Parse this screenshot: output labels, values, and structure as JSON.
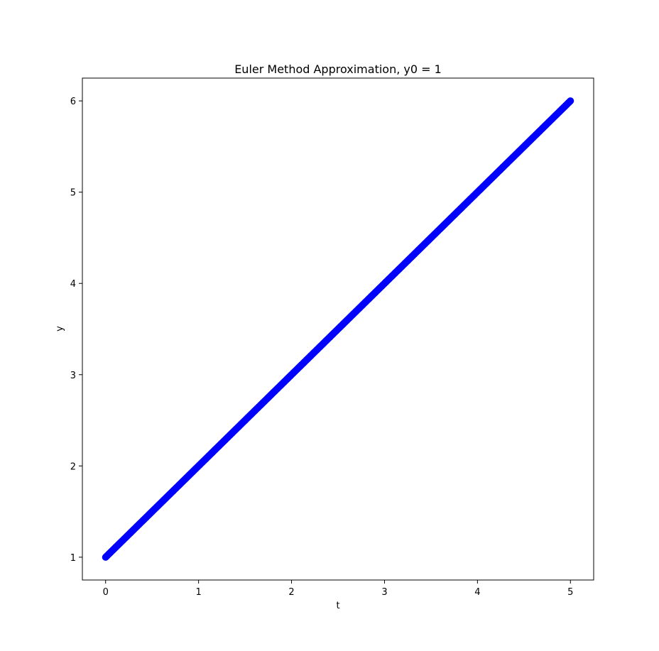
{
  "chart_data": {
    "type": "scatter",
    "title": "Euler Method Approximation, y0 = 1",
    "xlabel": "t",
    "ylabel": "y",
    "xlim": [
      -0.25,
      5.25
    ],
    "ylim": [
      0.75,
      6.25
    ],
    "xticks": [
      0,
      1,
      2,
      3,
      4,
      5
    ],
    "yticks": [
      1,
      2,
      3,
      4,
      5,
      6
    ],
    "grid": false,
    "series": [
      {
        "color": "#0000ff",
        "marker": "circle",
        "x_start": 0,
        "x_end": 5,
        "step": 0.01,
        "y_start": 1,
        "slope": 1
      }
    ]
  }
}
